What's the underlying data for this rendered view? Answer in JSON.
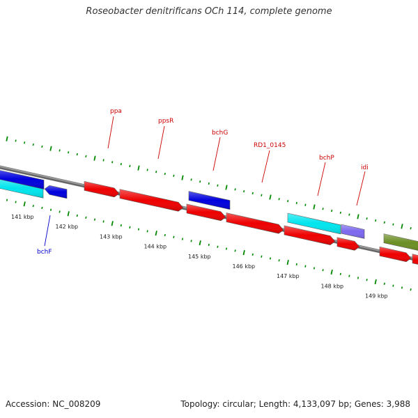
{
  "title": "Roseobacter denitrificans OCh 114, complete genome",
  "footer": {
    "accession": "Accession: NC_008209",
    "summary": "Topology: circular; Length: 4,133,097 bp; Genes: 3,988"
  },
  "colors": {
    "forward_strand_gene": "#ee0000",
    "reverse_strand_gene": "#0000dd",
    "cyan_gene": "#00e5ee",
    "purple_gene": "#7b68ee",
    "olive_gene": "#6b8e23",
    "backbone": "#888888",
    "tick": "#008800",
    "label_forward": "#cc0000",
    "label_reverse": "#0000cc"
  },
  "scale_labels": [
    "141 kbp",
    "142 kbp",
    "143 kbp",
    "144 kbp",
    "145 kbp",
    "146 kbp",
    "147 kbp",
    "148 kbp",
    "149 kbp"
  ],
  "gene_labels": [
    {
      "text": "ppa",
      "strand": "forward"
    },
    {
      "text": "ppsR",
      "strand": "forward"
    },
    {
      "text": "bchG",
      "strand": "forward"
    },
    {
      "text": "RD1_0145",
      "strand": "forward"
    },
    {
      "text": "bchP",
      "strand": "forward"
    },
    {
      "text": "idi",
      "strand": "forward"
    },
    {
      "text": "bchF",
      "strand": "reverse"
    }
  ]
}
